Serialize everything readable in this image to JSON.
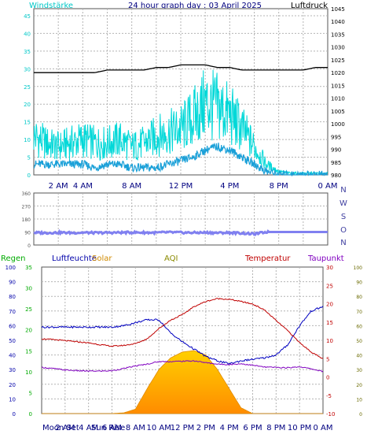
{
  "header": {
    "left_label": "Windstärke",
    "title": "24 hour graph day : 03 April 2025",
    "right_label": "Luftdruck"
  },
  "wind_panel": {
    "y_ticks": [
      "0",
      "5",
      "10",
      "15",
      "20",
      "25",
      "30",
      "35",
      "40",
      "45"
    ],
    "pressure_ticks": [
      "980",
      "985",
      "990",
      "995",
      "1000",
      "1005",
      "1010",
      "1015",
      "1020",
      "1025",
      "1030",
      "1035",
      "1040",
      "1045"
    ],
    "x_ticks": [
      "2 AM",
      "4 AM",
      "8 AM",
      "12 PM",
      "4 PM",
      "8 PM",
      "0 AM"
    ]
  },
  "direction_panel": {
    "y_ticks": [
      "0",
      "90",
      "180",
      "270",
      "360"
    ],
    "compass": [
      "N",
      "W",
      "S",
      "O",
      "N"
    ]
  },
  "bottom_panel": {
    "labels": {
      "regen": "Regen",
      "luftfeuchte": "Luftfeuchte",
      "solar": "Solar",
      "aqi": "AQI",
      "temperatur": "Temperatur",
      "taupunkt": "Taupunkt"
    },
    "humidity_ticks": [
      "0",
      "10",
      "20",
      "30",
      "40",
      "50",
      "60",
      "70",
      "80",
      "90",
      "100"
    ],
    "rain_ticks": [
      "0",
      "5",
      "10",
      "15",
      "20",
      "25",
      "30",
      "35"
    ],
    "temp_ticks": [
      "-10",
      "-5",
      "0",
      "5",
      "10",
      "15",
      "20",
      "25",
      "30"
    ],
    "aqi_ticks": [
      "0",
      "10",
      "20",
      "30",
      "40",
      "50",
      "60",
      "70",
      "80",
      "90",
      "100"
    ],
    "x_ticks": [
      "2 AM",
      "4 AM",
      "6 AM",
      "8 AM",
      "10 AM",
      "12 PM",
      "2 PM",
      "4 PM",
      "6 PM",
      "8 PM",
      "10 PM",
      "0 AM"
    ],
    "moonset": "Moon Set",
    "sunrise": "Sun Rise"
  },
  "colors": {
    "wind_gust": "#00d8d8",
    "wind_avg": "#1aa0d8",
    "pressure": "#000000",
    "direction": "#8080f0",
    "humidity": "#0000c0",
    "temperature": "#c00000",
    "dewpoint": "#8000c0",
    "solar_top": "#ffd000",
    "solar_bottom": "#ff8c00",
    "grid": "#b4b4b4"
  },
  "chart_data": [
    {
      "type": "line",
      "title": "24 hour graph day : 03 April 2025",
      "x": [
        0,
        1,
        2,
        3,
        4,
        5,
        6,
        7,
        8,
        9,
        10,
        11,
        12,
        13,
        14,
        15,
        16,
        17,
        18,
        19,
        20,
        21,
        22,
        23,
        24
      ],
      "ylim": [
        0,
        47
      ],
      "y2lim": [
        980,
        1045
      ],
      "series": [
        {
          "name": "Windstärke",
          "axis": "left",
          "values": [
            11,
            9,
            8,
            9,
            10,
            9,
            9,
            10,
            8,
            9,
            11,
            12,
            13,
            16,
            20,
            19,
            17,
            13,
            8,
            3,
            1,
            0.5,
            0.5,
            0.5,
            0.5
          ]
        },
        {
          "name": "",
          "axis": "left",
          "values": [
            3,
            3,
            3,
            3,
            3,
            2,
            3,
            3,
            2,
            2,
            2,
            3,
            4,
            5,
            7,
            8,
            7,
            5,
            3,
            1,
            0,
            0,
            0,
            0,
            0
          ]
        },
        {
          "name": "Luftdruck",
          "axis": "right",
          "values": [
            1020,
            1020,
            1020,
            1020,
            1020,
            1020,
            1021,
            1021,
            1021,
            1021,
            1022,
            1022,
            1023,
            1023,
            1023,
            1022,
            1022,
            1021,
            1021,
            1021,
            1021,
            1021,
            1021,
            1022,
            1022
          ]
        }
      ]
    },
    {
      "type": "line",
      "ylim": [
        0,
        360
      ],
      "series": [
        {
          "name": "",
          "values": [
            85,
            84,
            86,
            84,
            86,
            84,
            85,
            86,
            87,
            86,
            85,
            88,
            86,
            85,
            86,
            84,
            85,
            82,
            76,
            90,
            90,
            90,
            90,
            90,
            90
          ]
        }
      ]
    },
    {
      "type": "line",
      "x": [
        0,
        1,
        2,
        3,
        4,
        5,
        6,
        7,
        8,
        9,
        10,
        11,
        12,
        13,
        14,
        15,
        16,
        17,
        18,
        19,
        20,
        21,
        22,
        23,
        24
      ],
      "series": [
        {
          "name": "Luftfeuchte",
          "axis": "humidity",
          "values": [
            59,
            59,
            59,
            59,
            59,
            59,
            59,
            60,
            62,
            64,
            64,
            55,
            49,
            44,
            39,
            36,
            34,
            36,
            37,
            38,
            40,
            47,
            60,
            70,
            73
          ]
        },
        {
          "name": "Temperatur",
          "axis": "temperature",
          "values": [
            10.4,
            10.2,
            9.9,
            9.6,
            9.3,
            8.8,
            8.4,
            8.6,
            9.1,
            10.4,
            13.2,
            15.5,
            17.0,
            19.2,
            20.6,
            21.4,
            21.2,
            20.6,
            19.9,
            18.3,
            15.4,
            12.6,
            9.4,
            6.8,
            4.9
          ]
        },
        {
          "name": "Taupunkt",
          "axis": "temperature",
          "values": [
            2.6,
            2.3,
            1.9,
            1.7,
            1.6,
            1.6,
            1.7,
            2.3,
            3.0,
            3.5,
            4.2,
            4.2,
            4.3,
            4.4,
            3.9,
            3.5,
            3.4,
            3.6,
            3.2,
            2.7,
            2.6,
            2.5,
            2.8,
            2.2,
            1.5
          ]
        },
        {
          "name": "Solar",
          "axis": "humidity",
          "values": [
            0,
            0,
            0,
            0,
            0,
            0,
            0,
            0.5,
            3,
            17,
            30,
            38,
            42,
            43,
            40,
            30,
            17,
            4,
            0,
            0,
            0,
            0,
            0,
            0,
            0
          ]
        }
      ]
    }
  ]
}
